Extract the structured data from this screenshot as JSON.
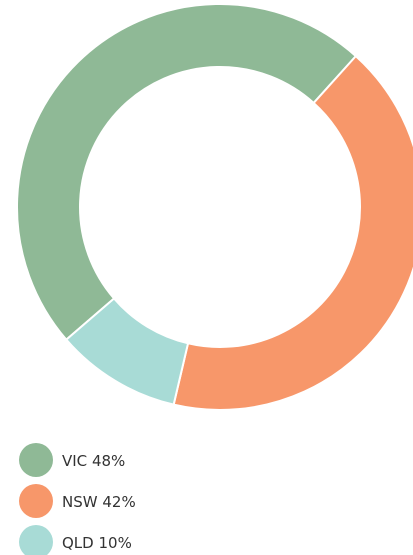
{
  "chart_data": {
    "type": "donut",
    "categories": [
      "VIC",
      "NSW",
      "QLD"
    ],
    "values": [
      48,
      42,
      10
    ],
    "value_labels": [
      "48%",
      "42%",
      "10%"
    ],
    "colors": [
      "#8fb996",
      "#f7976a",
      "#a8dbd6"
    ]
  }
}
